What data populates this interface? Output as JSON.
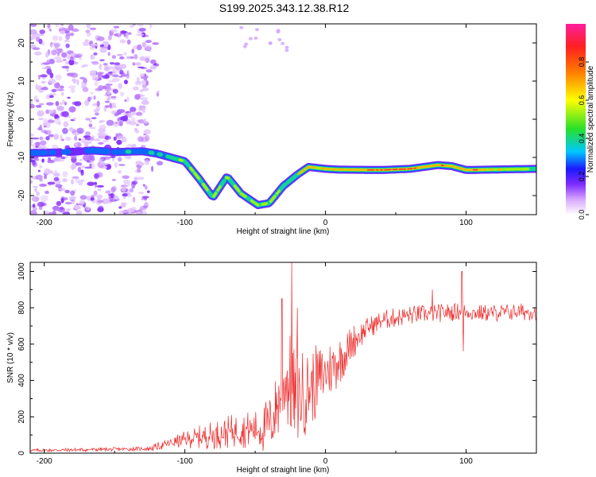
{
  "title": "S199.2025.343.12.38.R12",
  "colors": {
    "snr_line": "#ee2a2a",
    "axis": "#000000"
  },
  "chart_data": [
    {
      "type": "heatmap",
      "name": "spectrogram",
      "title": "S199.2025.343.12.38.R12",
      "xlabel": "Height of straight line (km)",
      "ylabel": "Frequency (Hz)",
      "xlim": [
        -210,
        150
      ],
      "ylim": [
        -25,
        25
      ],
      "xticks": [
        {
          "value": -200,
          "label": "-200"
        },
        {
          "value": -100,
          "label": "-100"
        },
        {
          "value": 0,
          "label": "0"
        },
        {
          "value": 100,
          "label": "100"
        }
      ],
      "yticks": [
        {
          "value": 20,
          "label": "20"
        },
        {
          "value": 10,
          "label": "10"
        },
        {
          "value": 0,
          "label": "0"
        },
        {
          "value": -10,
          "label": "-10"
        },
        {
          "value": -20,
          "label": "-20"
        }
      ],
      "colorbar": {
        "label": "Normalized spectral amplitude",
        "range": [
          0,
          1
        ],
        "ticks": [
          {
            "value": 0.0,
            "label": "0.0"
          },
          {
            "value": 0.2,
            "label": "0.2"
          },
          {
            "value": 0.4,
            "label": "0.4"
          },
          {
            "value": 0.6,
            "label": "0.6"
          },
          {
            "value": 0.8,
            "label": "0.8"
          }
        ],
        "colormap": [
          "#ffffff",
          "#7d2bff",
          "#1a1aff",
          "#00d4ff",
          "#28e02a",
          "#ffff00",
          "#ff2a00",
          "#ff1f9c"
        ]
      },
      "carrier_trace": [
        [
          -200,
          -8.8
        ],
        [
          -180,
          -8.5
        ],
        [
          -165,
          -8.2
        ],
        [
          -150,
          -8.6
        ],
        [
          -130,
          -8.4
        ],
        [
          -120,
          -9.0
        ],
        [
          -112,
          -9.8
        ],
        [
          -100,
          -11.0
        ],
        [
          -90,
          -15.5
        ],
        [
          -80,
          -20.5
        ],
        [
          -70,
          -15.0
        ],
        [
          -60,
          -19.5
        ],
        [
          -48,
          -22.5
        ],
        [
          -40,
          -22.0
        ],
        [
          -30,
          -17.5
        ],
        [
          -20,
          -14.5
        ],
        [
          -12,
          -12.5
        ],
        [
          0,
          -13.0
        ],
        [
          10,
          -13.2
        ],
        [
          40,
          -13.3
        ],
        [
          60,
          -13.0
        ],
        [
          80,
          -12.0
        ],
        [
          90,
          -12.3
        ],
        [
          100,
          -13.3
        ],
        [
          150,
          -13.0
        ]
      ],
      "carrier_amplitude": [
        [
          -200,
          0.15
        ],
        [
          -160,
          0.2
        ],
        [
          -120,
          0.25
        ],
        [
          -112,
          0.35
        ],
        [
          -100,
          0.4
        ],
        [
          -90,
          0.4
        ],
        [
          -80,
          0.4
        ],
        [
          -60,
          0.4
        ],
        [
          -45,
          0.45
        ],
        [
          -30,
          0.4
        ],
        [
          -15,
          0.55
        ],
        [
          0,
          0.6
        ],
        [
          20,
          0.7
        ],
        [
          40,
          0.85
        ],
        [
          60,
          0.8
        ],
        [
          80,
          0.75
        ],
        [
          90,
          0.65
        ],
        [
          100,
          0.8
        ],
        [
          120,
          0.5
        ],
        [
          150,
          0.45
        ]
      ]
    },
    {
      "type": "line",
      "name": "snr",
      "xlabel": "Height of straight line (km)",
      "ylabel": "SNR (10 * v/v)",
      "xlim": [
        -210,
        150
      ],
      "ylim": [
        0,
        1050
      ],
      "xticks": [
        {
          "value": -200,
          "label": "-200"
        },
        {
          "value": -100,
          "label": "-100"
        },
        {
          "value": 0,
          "label": "0"
        },
        {
          "value": 100,
          "label": "100"
        }
      ],
      "yticks": [
        {
          "value": 0,
          "label": "0"
        },
        {
          "value": 200,
          "label": "200"
        },
        {
          "value": 400,
          "label": "400"
        },
        {
          "value": 600,
          "label": "600"
        },
        {
          "value": 800,
          "label": "800"
        },
        {
          "value": 1000,
          "label": "1000"
        }
      ],
      "baseline": [
        [
          -210,
          15
        ],
        [
          -160,
          20
        ],
        [
          -125,
          25
        ],
        [
          -110,
          55
        ],
        [
          -100,
          75
        ],
        [
          -80,
          100
        ],
        [
          -60,
          130
        ],
        [
          -45,
          130
        ],
        [
          -38,
          170
        ],
        [
          -32,
          320
        ],
        [
          -28,
          420
        ],
        [
          -22,
          300
        ],
        [
          -15,
          330
        ],
        [
          -8,
          380
        ],
        [
          0,
          440
        ],
        [
          8,
          500
        ],
        [
          15,
          560
        ],
        [
          20,
          620
        ],
        [
          30,
          690
        ],
        [
          40,
          730
        ],
        [
          60,
          760
        ],
        [
          80,
          770
        ],
        [
          95,
          780
        ],
        [
          110,
          770
        ],
        [
          130,
          775
        ],
        [
          150,
          780
        ]
      ],
      "noise_amplitude": [
        [
          -210,
          10
        ],
        [
          -130,
          12
        ],
        [
          -110,
          30
        ],
        [
          -80,
          80
        ],
        [
          -50,
          110
        ],
        [
          -38,
          180
        ],
        [
          -25,
          300
        ],
        [
          -10,
          220
        ],
        [
          5,
          170
        ],
        [
          15,
          120
        ],
        [
          30,
          60
        ],
        [
          60,
          55
        ],
        [
          100,
          50
        ],
        [
          150,
          50
        ]
      ],
      "spikes": [
        {
          "x": -24,
          "y": 1050
        },
        {
          "x": -31,
          "y": 850
        },
        {
          "x": -20,
          "y": 800
        },
        {
          "x": 97,
          "y": 1000
        },
        {
          "x": 98,
          "y": 560
        },
        {
          "x": 76,
          "y": 900
        }
      ]
    }
  ]
}
